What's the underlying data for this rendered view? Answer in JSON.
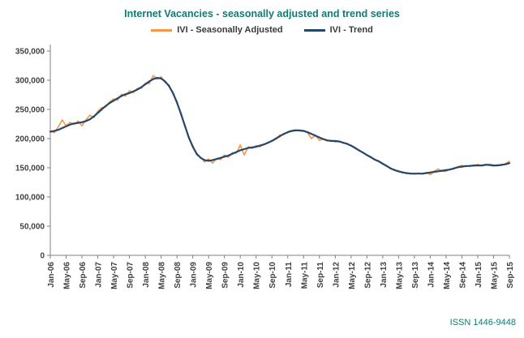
{
  "header": {
    "title": "Internet Vacancies - seasonally adjusted and trend series"
  },
  "legend": {
    "items": [
      {
        "label": "IVI - Seasonally Adjusted",
        "color": "#F79646"
      },
      {
        "label": "IVI - Trend",
        "color": "#24476B"
      }
    ]
  },
  "footer": {
    "issn": "ISSN 1446-9448"
  },
  "colors": {
    "title_text": "#0E7C71",
    "issn_text": "#0E7C71",
    "sa_line": "#F79646",
    "trend_line": "#24476B",
    "axis_line": "#808080",
    "tick_text": "#404040"
  },
  "chart_data": {
    "type": "line",
    "title": "Internet Vacancies - seasonally adjusted and trend series",
    "xlabel": "",
    "ylabel": "",
    "ylim": [
      0,
      350000
    ],
    "y_tick_step": 50000,
    "y_tick_labels": [
      "0",
      "50,000",
      "100,000",
      "150,000",
      "200,000",
      "250,000",
      "300,000",
      "350,000"
    ],
    "grid": false,
    "legend_position": "top",
    "x_unit": "month",
    "x_range": "Jan-06 to Sep-15",
    "x_tick_every": 4,
    "x_tick_labels": [
      "Jan-06",
      "May-06",
      "Sep-06",
      "Jan-07",
      "May-07",
      "Sep-07",
      "Jan-08",
      "May-08",
      "Sep-08",
      "Jan-09",
      "May-09",
      "Sep-09",
      "Jan-10",
      "May-10",
      "Sep-10",
      "Jan-11",
      "May-11",
      "Sep-11",
      "Jan-12",
      "May-12",
      "Sep-12",
      "Jan-13",
      "May-13",
      "Sep-13",
      "Jan-14",
      "May-14",
      "Sep-14",
      "Jan-15",
      "May-15",
      "Sep-15"
    ],
    "series": [
      {
        "name": "IVI - Seasonally Adjusted",
        "color": "#F79646",
        "values": [
          214000,
          210000,
          220000,
          232000,
          222000,
          228000,
          224000,
          230000,
          222000,
          232000,
          240000,
          236000,
          247000,
          253000,
          254000,
          263000,
          268000,
          266000,
          276000,
          273000,
          282000,
          279000,
          286000,
          286000,
          295000,
          294000,
          308000,
          302000,
          306000,
          296000,
          292000,
          276000,
          264000,
          241000,
          224000,
          200000,
          188000,
          172000,
          168000,
          160000,
          165000,
          158000,
          166000,
          164000,
          172000,
          168000,
          176000,
          175000,
          189000,
          172000,
          186000,
          183000,
          188000,
          186000,
          191000,
          192000,
          197000,
          199000,
          206000,
          207000,
          212000,
          214000,
          215000,
          213000,
          214000,
          210000,
          200000,
          206000,
          197000,
          200000,
          196000,
          197000,
          194000,
          196000,
          192000,
          192000,
          187000,
          185000,
          179000,
          177000,
          171000,
          169000,
          163000,
          162000,
          156000,
          154000,
          148000,
          147000,
          143000,
          143000,
          140000,
          141000,
          139000,
          141000,
          139000,
          142000,
          138000,
          144000,
          148000,
          144000,
          144000,
          148000,
          148000,
          152000,
          154000,
          152000,
          154000,
          153000,
          156000,
          153000,
          156000,
          154000,
          153000,
          155000,
          154000,
          157000,
          161000
        ]
      },
      {
        "name": "IVI - Trend",
        "color": "#24476B",
        "values": [
          212000,
          213000,
          215000,
          218000,
          221000,
          224000,
          226000,
          227000,
          228000,
          230000,
          233000,
          238000,
          244000,
          250000,
          256000,
          261000,
          265000,
          269000,
          273000,
          276000,
          278000,
          281000,
          284000,
          288000,
          293000,
          298000,
          302000,
          304000,
          303000,
          298000,
          290000,
          278000,
          262000,
          243000,
          222000,
          202000,
          186000,
          174000,
          167000,
          163000,
          162000,
          163000,
          165000,
          167000,
          169000,
          171000,
          174000,
          177000,
          180000,
          182000,
          184000,
          185000,
          186000,
          188000,
          190000,
          193000,
          196000,
          200000,
          204000,
          208000,
          211000,
          213000,
          214000,
          214000,
          213000,
          211000,
          208000,
          205000,
          202000,
          199000,
          197000,
          196000,
          196000,
          195000,
          193000,
          191000,
          188000,
          184000,
          180000,
          176000,
          172000,
          168000,
          164000,
          161000,
          157000,
          153000,
          149000,
          146000,
          144000,
          142000,
          141000,
          140000,
          140000,
          140000,
          140000,
          141000,
          142000,
          143000,
          144000,
          145000,
          146000,
          147000,
          149000,
          151000,
          152000,
          153000,
          153000,
          154000,
          154000,
          154000,
          155000,
          155000,
          154000,
          154000,
          155000,
          156000,
          158000
        ]
      }
    ]
  }
}
